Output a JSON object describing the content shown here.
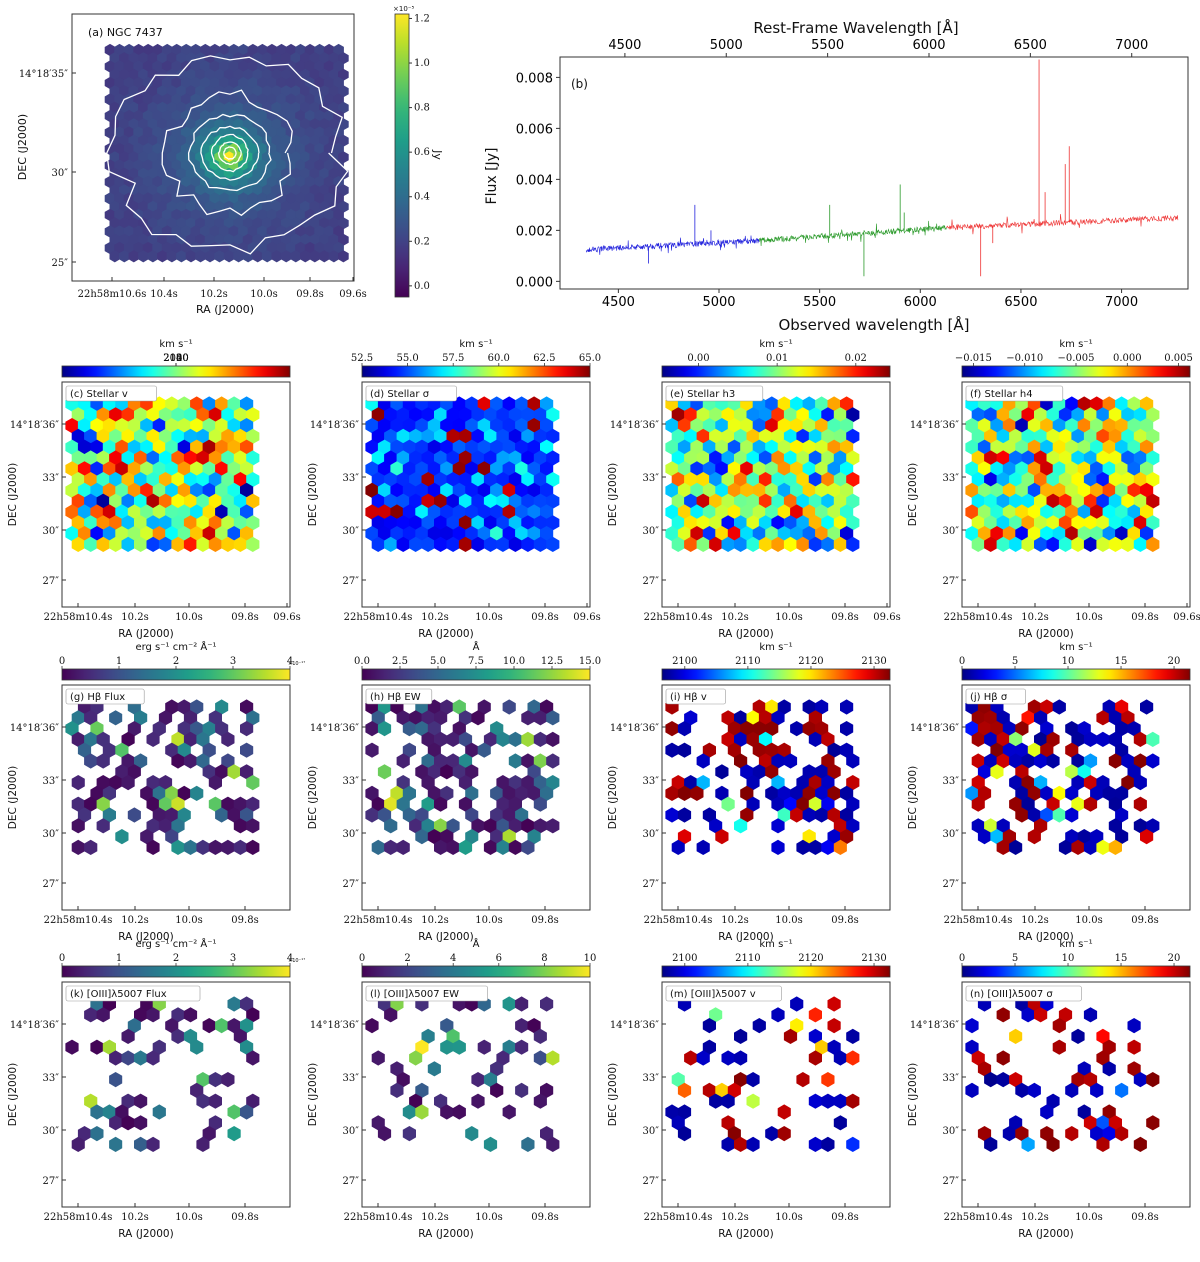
{
  "chart_data": [
    {
      "id": "a",
      "type": "heatmap",
      "title": "(a) NGC 7437",
      "xlabel": "RA (J2000)",
      "ylabel": "DEC (J2000)",
      "xticks": [
        "22h58m10.6s",
        "10.4s",
        "10.2s",
        "10.0s",
        "09.8s",
        "09.6s"
      ],
      "yticks": [
        "14°18′35″",
        "30″",
        "25″"
      ],
      "colorbar": {
        "label": "Jy",
        "ticks": [
          "0.0",
          "0.2",
          "0.4",
          "0.6",
          "0.8",
          "1.0",
          "1.2"
        ],
        "multiplier": "×10⁻⁵",
        "range": [
          -0.05,
          1.22
        ],
        "cmap": "viridis"
      },
      "contours": true
    },
    {
      "id": "b",
      "type": "line",
      "label": "(b)",
      "xlabel": "Observed wavelength [Å]",
      "ylabel": "Flux [Jy]",
      "top_xlabel": "Rest-Frame Wavelength [Å]",
      "xticks": [
        "4500",
        "5000",
        "5500",
        "6000",
        "6500",
        "7000"
      ],
      "top_xticks": [
        "4500",
        "5000",
        "5500",
        "6000",
        "6500",
        "7000"
      ],
      "yticks": [
        "0.000",
        "0.002",
        "0.004",
        "0.006",
        "0.008"
      ],
      "xlim": [
        4210,
        7330
      ],
      "ylim": [
        -0.0003,
        0.0088
      ],
      "series": [
        {
          "color": "#2222dd",
          "x": [
            4340,
            5200
          ],
          "y": [
            0.00125,
            0.0016
          ]
        },
        {
          "color": "#2a9a2a",
          "x": [
            5200,
            6130
          ],
          "y": [
            0.0016,
            0.0021
          ]
        },
        {
          "color": "#ee3333",
          "x": [
            6130,
            7280
          ],
          "y": [
            0.0021,
            0.0025
          ]
        }
      ],
      "lines": [
        {
          "x": 4880,
          "y": 0.003,
          "s": 0
        },
        {
          "x": 4960,
          "y": 0.002,
          "s": 0
        },
        {
          "x": 4650,
          "y": 0.0007,
          "s": 0
        },
        {
          "x": 5550,
          "y": 0.003,
          "s": 1
        },
        {
          "x": 5720,
          "y": 0.0002,
          "s": 1
        },
        {
          "x": 5900,
          "y": 0.0038,
          "s": 1
        },
        {
          "x": 5920,
          "y": 0.0027,
          "s": 1
        },
        {
          "x": 6590,
          "y": 0.0087,
          "s": 2
        },
        {
          "x": 6300,
          "y": 0.0002,
          "s": 2
        },
        {
          "x": 6740,
          "y": 0.0053,
          "s": 2
        },
        {
          "x": 6720,
          "y": 0.0046,
          "s": 2
        },
        {
          "x": 6620,
          "y": 0.0035,
          "s": 2
        },
        {
          "x": 6360,
          "y": 0.0015,
          "s": 2
        }
      ]
    },
    {
      "id": "c",
      "type": "heatmap",
      "title": "(c) Stellar v",
      "ylabel": "DEC (J2000)",
      "xlabel": "RA (J2000)",
      "cbar_label": "km s⁻¹",
      "cbar_ticks": [
        "2080",
        "2100",
        "2120",
        "2140"
      ],
      "cmap": "jet",
      "xticks": [
        "22h58m10.4s",
        "10.2s",
        "10.0s",
        "09.8s",
        "09.6s"
      ],
      "yticks": [
        "14°18′36″",
        "33″",
        "30″",
        "27″"
      ]
    },
    {
      "id": "d",
      "type": "heatmap",
      "title": "(d) Stellar σ",
      "ylabel": "DEC (J2000)",
      "xlabel": "RA (J2000)",
      "cbar_label": "km s⁻¹",
      "cbar_ticks": [
        "52.5",
        "55.0",
        "57.5",
        "60.0",
        "62.5",
        "65.0"
      ],
      "cmap": "jet",
      "xticks": [
        "22h58m10.4s",
        "10.2s",
        "10.0s",
        "09.8s",
        "09.6s"
      ],
      "yticks": [
        "14°18′36″",
        "33″",
        "30″",
        "27″"
      ]
    },
    {
      "id": "e",
      "type": "heatmap",
      "title": "(e) Stellar h3",
      "ylabel": "DEC (J2000)",
      "xlabel": "RA (J2000)",
      "cbar_label": "km s⁻¹",
      "cbar_ticks": [
        "0.00",
        "0.01",
        "0.02"
      ],
      "cmap": "jet",
      "xticks": [
        "22h58m10.4s",
        "10.2s",
        "10.0s",
        "09.8s",
        "09.6s"
      ],
      "yticks": [
        "14°18′36″",
        "33″",
        "30″",
        "27″"
      ]
    },
    {
      "id": "f",
      "type": "heatmap",
      "title": "(f) Stellar h4",
      "ylabel": "DEC (J2000)",
      "xlabel": "RA (J2000)",
      "cbar_label": "km s⁻¹",
      "cbar_ticks": [
        "−0.015",
        "−0.010",
        "−0.005",
        "0.000",
        "0.005"
      ],
      "cmap": "jet",
      "xticks": [
        "22h58m10.4s",
        "10.2s",
        "10.0s",
        "09.8s",
        "09.6s"
      ],
      "yticks": [
        "14°18′36″",
        "33″",
        "30″",
        "27″"
      ]
    },
    {
      "id": "g",
      "type": "heatmap",
      "title": "(g) Hβ Flux",
      "ylabel": "DEC (J2000)",
      "xlabel": "RA (J2000)",
      "cbar_label": "erg s⁻¹ cm⁻² Å⁻¹",
      "cbar_ticks": [
        "0",
        "1",
        "2",
        "3",
        "4"
      ],
      "cbar_mult": "×10⁻¹⁷",
      "cmap": "viridis",
      "xticks": [
        "22h58m10.4s",
        "10.2s",
        "10.0s",
        "09.8s"
      ],
      "yticks": [
        "14°18′36″",
        "33″",
        "30″",
        "27″"
      ]
    },
    {
      "id": "h",
      "type": "heatmap",
      "title": "(h) Hβ EW",
      "ylabel": "DEC (J2000)",
      "xlabel": "RA (J2000)",
      "cbar_label": "Å",
      "cbar_ticks": [
        "0.0",
        "2.5",
        "5.0",
        "7.5",
        "10.0",
        "12.5",
        "15.0"
      ],
      "cmap": "viridis",
      "xticks": [
        "22h58m10.4s",
        "10.2s",
        "10.0s",
        "09.8s"
      ],
      "yticks": [
        "14°18′36″",
        "33″",
        "30″",
        "27″"
      ]
    },
    {
      "id": "i",
      "type": "heatmap",
      "title": "(i) Hβ v",
      "ylabel": "DEC (J2000)",
      "xlabel": "RA (J2000)",
      "cbar_label": "km s⁻¹",
      "cbar_ticks": [
        "2100",
        "2110",
        "2120",
        "2130"
      ],
      "cmap": "jet",
      "xticks": [
        "22h58m10.4s",
        "10.2s",
        "10.0s",
        "09.8s"
      ],
      "yticks": [
        "14°18′36″",
        "33″",
        "30″",
        "27″"
      ]
    },
    {
      "id": "j",
      "type": "heatmap",
      "title": "(j) Hβ σ",
      "ylabel": "DEC (J2000)",
      "xlabel": "RA (J2000)",
      "cbar_label": "km s⁻¹",
      "cbar_ticks": [
        "0",
        "5",
        "10",
        "15",
        "20"
      ],
      "cmap": "jet",
      "xticks": [
        "22h58m10.4s",
        "10.2s",
        "10.0s",
        "09.8s"
      ],
      "yticks": [
        "14°18′36″",
        "33″",
        "30″",
        "27″"
      ]
    },
    {
      "id": "k",
      "type": "heatmap",
      "title": "(k) [OIII]λ5007 Flux",
      "ylabel": "DEC (J2000)",
      "xlabel": "RA (J2000)",
      "cbar_label": "erg s⁻¹ cm⁻² Å⁻¹",
      "cbar_ticks": [
        "0",
        "1",
        "2",
        "3",
        "4"
      ],
      "cbar_mult": "×10⁻¹⁷",
      "cmap": "viridis",
      "xticks": [
        "22h58m10.4s",
        "10.2s",
        "10.0s",
        "09.8s"
      ],
      "yticks": [
        "14°18′36″",
        "33″",
        "30″",
        "27″"
      ]
    },
    {
      "id": "l",
      "type": "heatmap",
      "title": "(l) [OIII]λ5007 EW",
      "ylabel": "DEC (J2000)",
      "xlabel": "RA (J2000)",
      "cbar_label": "Å",
      "cbar_ticks": [
        "0",
        "2",
        "4",
        "6",
        "8",
        "10"
      ],
      "cmap": "viridis",
      "xticks": [
        "22h58m10.4s",
        "10.2s",
        "10.0s",
        "09.8s"
      ],
      "yticks": [
        "14°18′36″",
        "33″",
        "30″",
        "27″"
      ]
    },
    {
      "id": "m",
      "type": "heatmap",
      "title": "(m) [OIII]λ5007 v",
      "ylabel": "DEC (J2000)",
      "xlabel": "RA (J2000)",
      "cbar_label": "km s⁻¹",
      "cbar_ticks": [
        "2100",
        "2110",
        "2120",
        "2130"
      ],
      "cmap": "jet",
      "xticks": [
        "22h58m10.4s",
        "10.2s",
        "10.0s",
        "09.8s"
      ],
      "yticks": [
        "14°18′36″",
        "33″",
        "30″",
        "27″"
      ]
    },
    {
      "id": "n",
      "type": "heatmap",
      "title": "(n) [OIII]λ5007 σ",
      "ylabel": "DEC (J2000)",
      "xlabel": "RA (J2000)",
      "cbar_label": "km s⁻¹",
      "cbar_ticks": [
        "0",
        "5",
        "10",
        "15",
        "20"
      ],
      "cmap": "jet",
      "xticks": [
        "22h58m10.4s",
        "10.2s",
        "10.0s",
        "09.8s"
      ],
      "yticks": [
        "14°18′36″",
        "33″",
        "30″",
        "27″"
      ]
    }
  ]
}
